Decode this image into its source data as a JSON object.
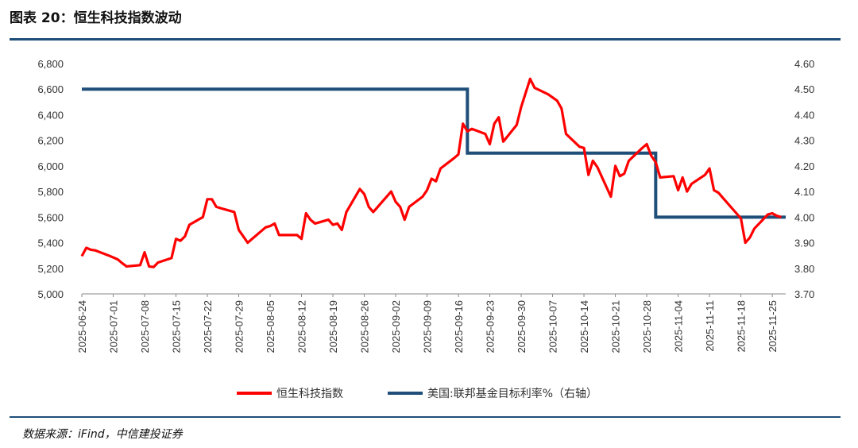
{
  "header": {
    "title": "图表 20：恒生科技指数波动"
  },
  "footer": {
    "source": "数据来源：iFind，中信建投证券"
  },
  "chart_data": {
    "type": "line",
    "title": "图表 20：恒生科技指数波动",
    "grid": false,
    "legend_position": "bottom",
    "left_axis": {
      "ylim": [
        5000,
        6800
      ],
      "ticks": [
        "5,000",
        "5,200",
        "5,400",
        "5,600",
        "5,800",
        "6,000",
        "6,200",
        "6,400",
        "6,600",
        "6,800"
      ]
    },
    "right_axis": {
      "ylim": [
        3.7,
        4.6
      ],
      "ticks": [
        "3.70",
        "3.80",
        "3.90",
        "4.00",
        "4.10",
        "4.20",
        "4.30",
        "4.40",
        "4.50",
        "4.60"
      ]
    },
    "x_ticks": [
      "2025-06-24",
      "2025-07-01",
      "2025-07-08",
      "2025-07-15",
      "2025-07-22",
      "2025-07-29",
      "2025-08-05",
      "2025-08-12",
      "2025-08-19",
      "2025-08-26",
      "2025-09-02",
      "2025-09-09",
      "2025-09-16",
      "2025-09-23",
      "2025-09-30",
      "2025-10-07",
      "2025-10-14",
      "2025-10-21",
      "2025-10-28",
      "2025-11-04",
      "2025-11-11",
      "2025-11-18",
      "2025-11-25"
    ],
    "series": [
      {
        "name": "恒生科技指数",
        "color": "#ff0000",
        "axis": "left",
        "x": [
          "2025-06-24",
          "2025-06-25",
          "2025-06-26",
          "2025-06-27",
          "2025-06-30",
          "2025-07-02",
          "2025-07-03",
          "2025-07-04",
          "2025-07-07",
          "2025-07-08",
          "2025-07-09",
          "2025-07-10",
          "2025-07-11",
          "2025-07-14",
          "2025-07-15",
          "2025-07-16",
          "2025-07-17",
          "2025-07-18",
          "2025-07-21",
          "2025-07-22",
          "2025-07-23",
          "2025-07-24",
          "2025-07-25",
          "2025-07-28",
          "2025-07-29",
          "2025-07-30",
          "2025-07-31",
          "2025-08-01",
          "2025-08-04",
          "2025-08-05",
          "2025-08-06",
          "2025-08-07",
          "2025-08-08",
          "2025-08-11",
          "2025-08-12",
          "2025-08-13",
          "2025-08-14",
          "2025-08-15",
          "2025-08-18",
          "2025-08-19",
          "2025-08-20",
          "2025-08-21",
          "2025-08-22",
          "2025-08-25",
          "2025-08-26",
          "2025-08-27",
          "2025-08-28",
          "2025-08-29",
          "2025-09-01",
          "2025-09-02",
          "2025-09-03",
          "2025-09-04",
          "2025-09-05",
          "2025-09-08",
          "2025-09-09",
          "2025-09-10",
          "2025-09-11",
          "2025-09-12",
          "2025-09-15",
          "2025-09-16",
          "2025-09-17",
          "2025-09-18",
          "2025-09-19",
          "2025-09-22",
          "2025-09-23",
          "2025-09-24",
          "2025-09-25",
          "2025-09-26",
          "2025-09-29",
          "2025-09-30",
          "2025-10-02",
          "2025-10-03",
          "2025-10-06",
          "2025-10-08",
          "2025-10-09",
          "2025-10-10",
          "2025-10-13",
          "2025-10-14",
          "2025-10-15",
          "2025-10-16",
          "2025-10-17",
          "2025-10-20",
          "2025-10-21",
          "2025-10-22",
          "2025-10-23",
          "2025-10-24",
          "2025-10-27",
          "2025-10-28",
          "2025-10-29",
          "2025-10-30",
          "2025-10-31",
          "2025-11-03",
          "2025-11-04",
          "2025-11-05",
          "2025-11-06",
          "2025-11-07",
          "2025-11-10",
          "2025-11-11",
          "2025-11-12",
          "2025-11-13",
          "2025-11-14",
          "2025-11-17",
          "2025-11-18",
          "2025-11-19",
          "2025-11-20",
          "2025-11-21",
          "2025-11-24",
          "2025-11-25",
          "2025-11-26",
          "2025-11-27"
        ],
        "values": [
          5295,
          5360,
          5345,
          5340,
          5300,
          5270,
          5240,
          5215,
          5225,
          5325,
          5215,
          5210,
          5245,
          5280,
          5430,
          5415,
          5450,
          5540,
          5600,
          5740,
          5740,
          5680,
          5670,
          5640,
          5500,
          5450,
          5400,
          5430,
          5520,
          5530,
          5550,
          5460,
          5460,
          5460,
          5430,
          5630,
          5580,
          5550,
          5580,
          5540,
          5550,
          5500,
          5640,
          5820,
          5780,
          5680,
          5640,
          5680,
          5800,
          5720,
          5680,
          5580,
          5680,
          5760,
          5810,
          5900,
          5880,
          5980,
          6060,
          6090,
          6330,
          6270,
          6290,
          6250,
          6170,
          6330,
          6380,
          6190,
          6320,
          6460,
          6680,
          6610,
          6560,
          6510,
          6450,
          6250,
          6150,
          6140,
          5930,
          6040,
          5990,
          5760,
          6000,
          5920,
          5940,
          6040,
          6140,
          6170,
          6080,
          6030,
          5910,
          5920,
          5810,
          5910,
          5800,
          5860,
          5930,
          5980,
          5810,
          5790,
          5750,
          5630,
          5590,
          5400,
          5440,
          5510,
          5620,
          5630,
          5610,
          5600
        ]
      },
      {
        "name": "美国:联邦基金目标利率%（右轴）",
        "color": "#1f4e79",
        "axis": "right",
        "steps": [
          {
            "from": "2025-06-24",
            "value": 4.5
          },
          {
            "from": "2025-09-18",
            "value": 4.25
          },
          {
            "from": "2025-10-30",
            "value": 4.0
          }
        ],
        "end": "2025-11-28"
      }
    ]
  }
}
